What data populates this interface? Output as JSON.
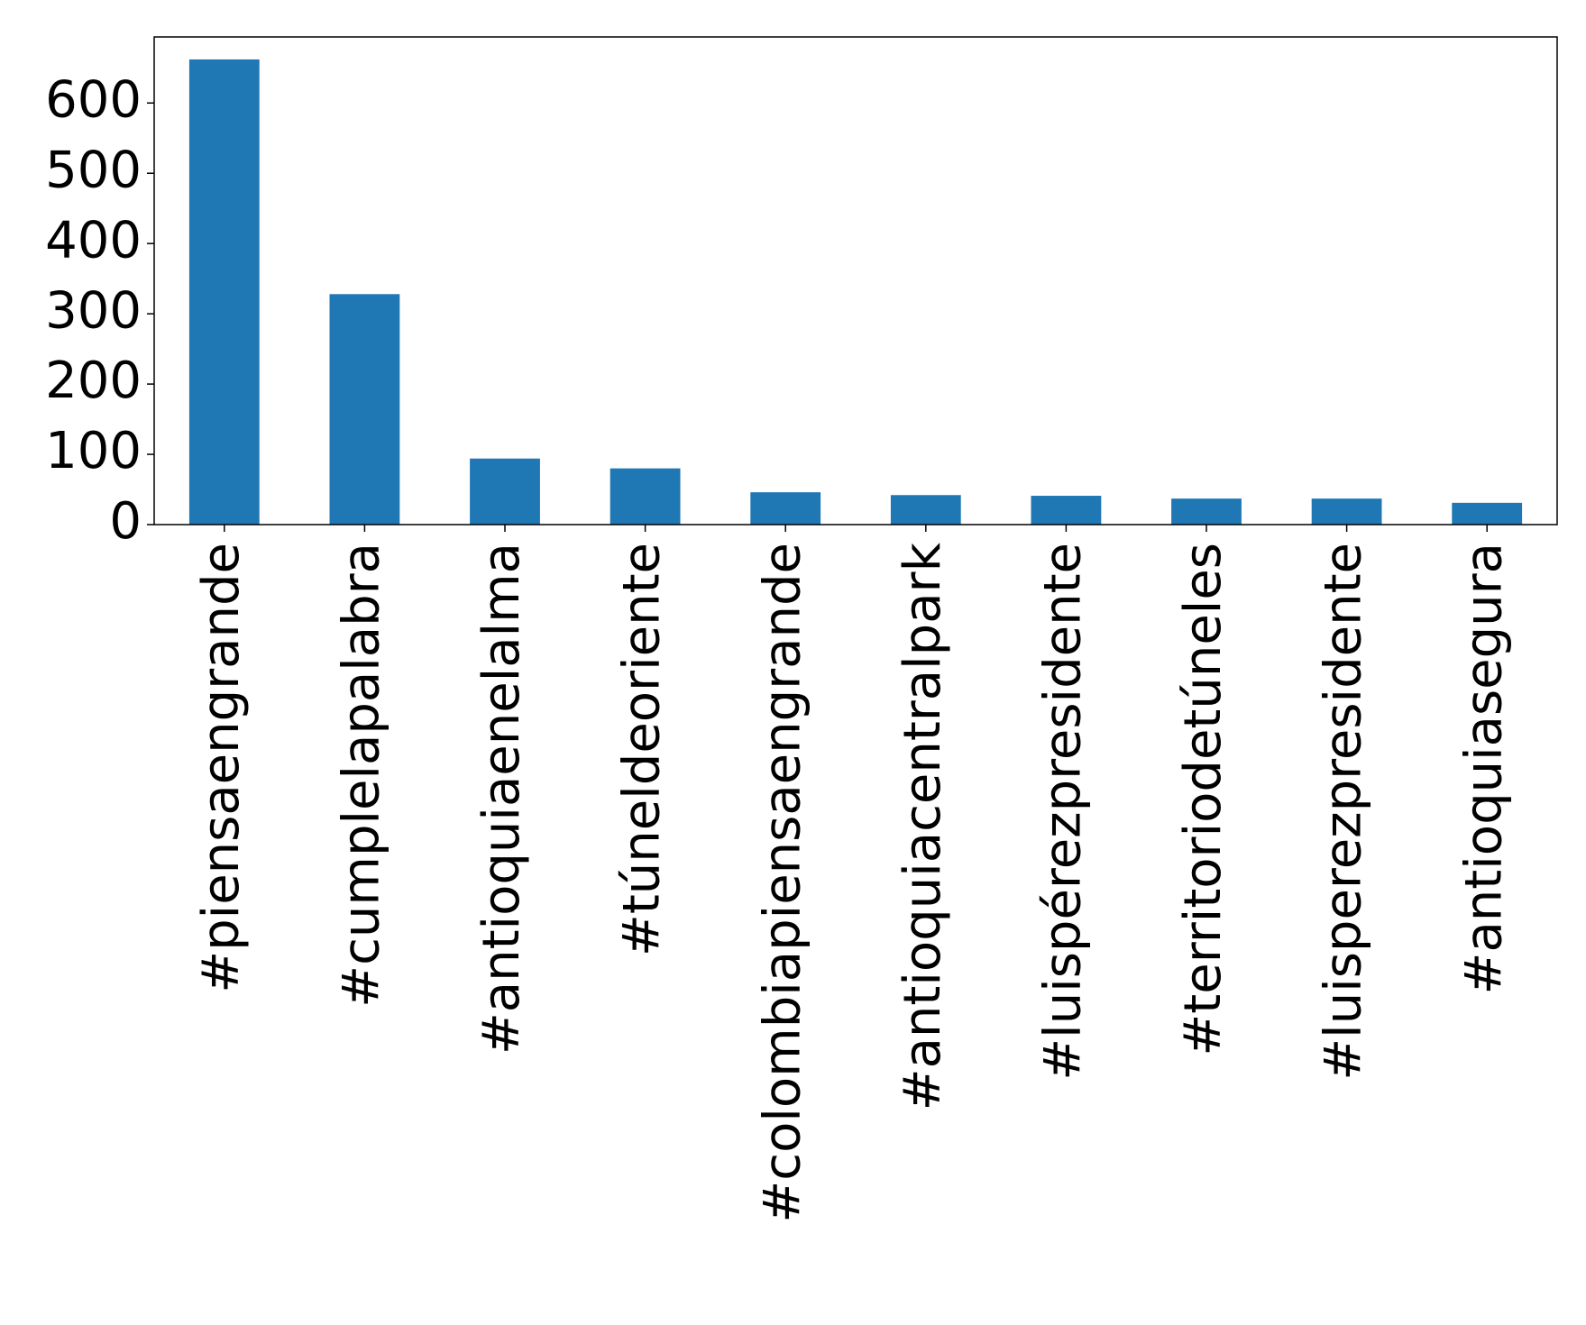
{
  "chart_data": {
    "type": "bar",
    "title": "",
    "xlabel": "",
    "ylabel": "",
    "categories": [
      "#piensaengrande",
      "#cumplelapalabra",
      "#antioquiaenelalma",
      "#túneldeoriente",
      "#colombiapiensaengrande",
      "#antioquiacentralpark",
      "#luispérezpresidente",
      "#territoriodetúneles",
      "#luisperezpresidente",
      "#antioquiasegura"
    ],
    "values": [
      662,
      328,
      94,
      80,
      46,
      42,
      41,
      37,
      37,
      31
    ],
    "ylim": [
      0,
      694
    ],
    "yticks": [
      0,
      100,
      200,
      300,
      400,
      500,
      600
    ],
    "grid": false,
    "legend": "none",
    "bar_color": "#1f77b4"
  }
}
